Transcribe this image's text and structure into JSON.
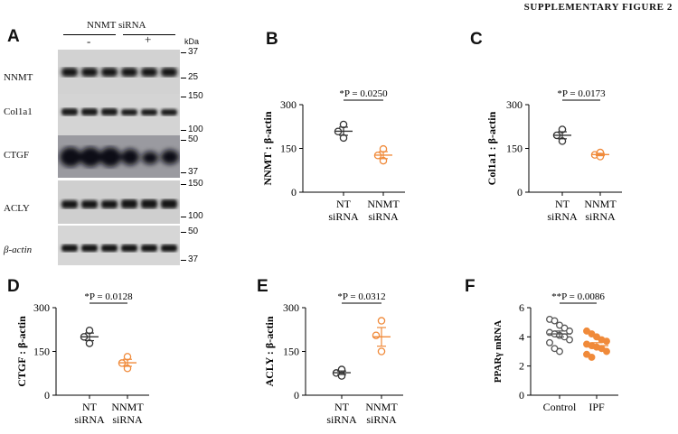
{
  "header": "SUPPLEMENTARY FIGURE 2",
  "panels": {
    "A": {
      "letter": "A",
      "treatment": "NNMT siRNA",
      "minus": "-",
      "plus": "+",
      "kda": "kDa",
      "blots": [
        {
          "label": "NNMT",
          "markers": [
            "37",
            "25"
          ]
        },
        {
          "label": "Col1a1",
          "markers": [
            "150",
            "100"
          ]
        },
        {
          "label": "CTGF",
          "markers": [
            "50",
            "37"
          ]
        },
        {
          "label": "ACLY",
          "markers": [
            "150",
            "100"
          ]
        },
        {
          "label": "β-actin",
          "markers": [
            "50",
            "37"
          ]
        }
      ]
    },
    "B": {
      "letter": "B"
    },
    "C": {
      "letter": "C"
    },
    "D": {
      "letter": "D"
    },
    "E": {
      "letter": "E"
    },
    "F": {
      "letter": "F"
    }
  },
  "chart_data": [
    {
      "panel": "B",
      "type": "scatter",
      "ylabel": "NNMT : β-actin",
      "yticks": [
        "0",
        "150",
        "300"
      ],
      "ylim": [
        0,
        300
      ],
      "categories": [
        "NT\nsiRNA",
        "NNMT\nsiRNA"
      ],
      "groups": [
        {
          "color": "#333333",
          "filled": false,
          "points": [
            232,
            208,
            186
          ],
          "mean": 209,
          "sem": 14
        },
        {
          "color": "#f08a3a",
          "filled": false,
          "points": [
            148,
            126,
            108
          ],
          "mean": 127,
          "sem": 12
        }
      ],
      "annotation": "*P = 0.0250"
    },
    {
      "panel": "C",
      "type": "scatter",
      "ylabel": "Col1a1 : β-actin",
      "yticks": [
        "0",
        "150",
        "300"
      ],
      "ylim": [
        0,
        300
      ],
      "categories": [
        "NT\nsiRNA",
        "NNMT\nsiRNA"
      ],
      "groups": [
        {
          "color": "#333333",
          "filled": false,
          "points": [
            215,
            195,
            175
          ],
          "mean": 195,
          "sem": 12
        },
        {
          "color": "#f08a3a",
          "filled": false,
          "points": [
            136,
            128,
            122
          ],
          "mean": 129,
          "sem": 4
        }
      ],
      "annotation": "*P = 0.0173"
    },
    {
      "panel": "D",
      "type": "scatter",
      "ylabel": "CTGF : β-actin",
      "yticks": [
        "0",
        "150",
        "300"
      ],
      "ylim": [
        0,
        300
      ],
      "categories": [
        "NT\nsiRNA",
        "NNMT\nsiRNA"
      ],
      "groups": [
        {
          "color": "#333333",
          "filled": false,
          "points": [
            222,
            200,
            178
          ],
          "mean": 200,
          "sem": 13
        },
        {
          "color": "#f08a3a",
          "filled": false,
          "points": [
            132,
            110,
            92
          ],
          "mean": 111,
          "sem": 12
        }
      ],
      "annotation": "*P = 0.0128"
    },
    {
      "panel": "E",
      "type": "scatter",
      "ylabel": "ACLY : β-actin",
      "yticks": [
        "0",
        "150",
        "300"
      ],
      "ylim": [
        0,
        300
      ],
      "categories": [
        "NT\nsiRNA",
        "NNMT\nsiRNA"
      ],
      "groups": [
        {
          "color": "#333333",
          "filled": false,
          "points": [
            88,
            76,
            66
          ],
          "mean": 77,
          "sem": 6
        },
        {
          "color": "#f08a3a",
          "filled": false,
          "points": [
            255,
            205,
            150
          ],
          "mean": 200,
          "sem": 32
        }
      ],
      "annotation": "*P = 0.0312"
    },
    {
      "panel": "F",
      "type": "scatter",
      "ylabel": "PPARγ mRNA",
      "yticks": [
        "0",
        "2",
        "4",
        "6"
      ],
      "ylim": [
        0,
        6
      ],
      "categories": [
        "Control",
        "IPF"
      ],
      "groups": [
        {
          "color": "#555555",
          "filled": false,
          "points": [
            5.2,
            5.1,
            4.8,
            4.6,
            4.4,
            4.3,
            4.2,
            4.1,
            4.0,
            3.8,
            3.6,
            3.2,
            3.0
          ],
          "mean": 4.2,
          "sem": 0.2
        },
        {
          "color": "#f08a3a",
          "filled": true,
          "points": [
            4.4,
            4.2,
            4.0,
            3.8,
            3.7,
            3.5,
            3.4,
            3.3,
            3.2,
            3.0,
            2.8,
            2.6
          ],
          "mean": 3.4,
          "sem": 0.2
        }
      ],
      "annotation": "**P = 0.0086"
    }
  ]
}
